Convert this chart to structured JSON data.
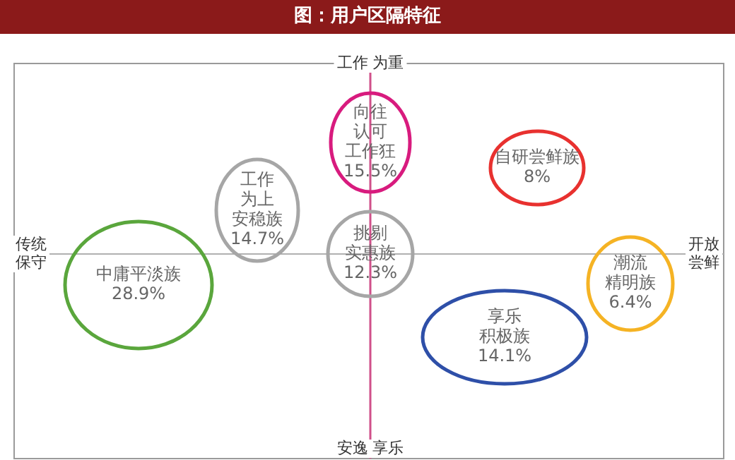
{
  "chart_data": {
    "type": "other",
    "title": "图：用户区隔特征",
    "annotations": [
      "工作 为重",
      "安逸 享乐",
      "传统保守",
      "开放尝鲜"
    ],
    "categories": [
      "向往认可工作狂",
      "自研尝鲜族",
      "工作为上安稳族",
      "挑剔实惠族",
      "中庸平淡族",
      "潮流精明族",
      "享乐积极族"
    ],
    "values": [
      15.5,
      8,
      14.7,
      12.3,
      28.9,
      6.4,
      14.1
    ],
    "colors": [
      "#d81b7e",
      "#e8312f",
      "#a6a6a6",
      "#a6a6a6",
      "#5aa63c",
      "#f5b324",
      "#2e4fa8"
    ],
    "value_labels": [
      "15.5%",
      "8%",
      "14.7%",
      "12.3%",
      "28.9%",
      "6.4%",
      "14.1%"
    ]
  }
}
